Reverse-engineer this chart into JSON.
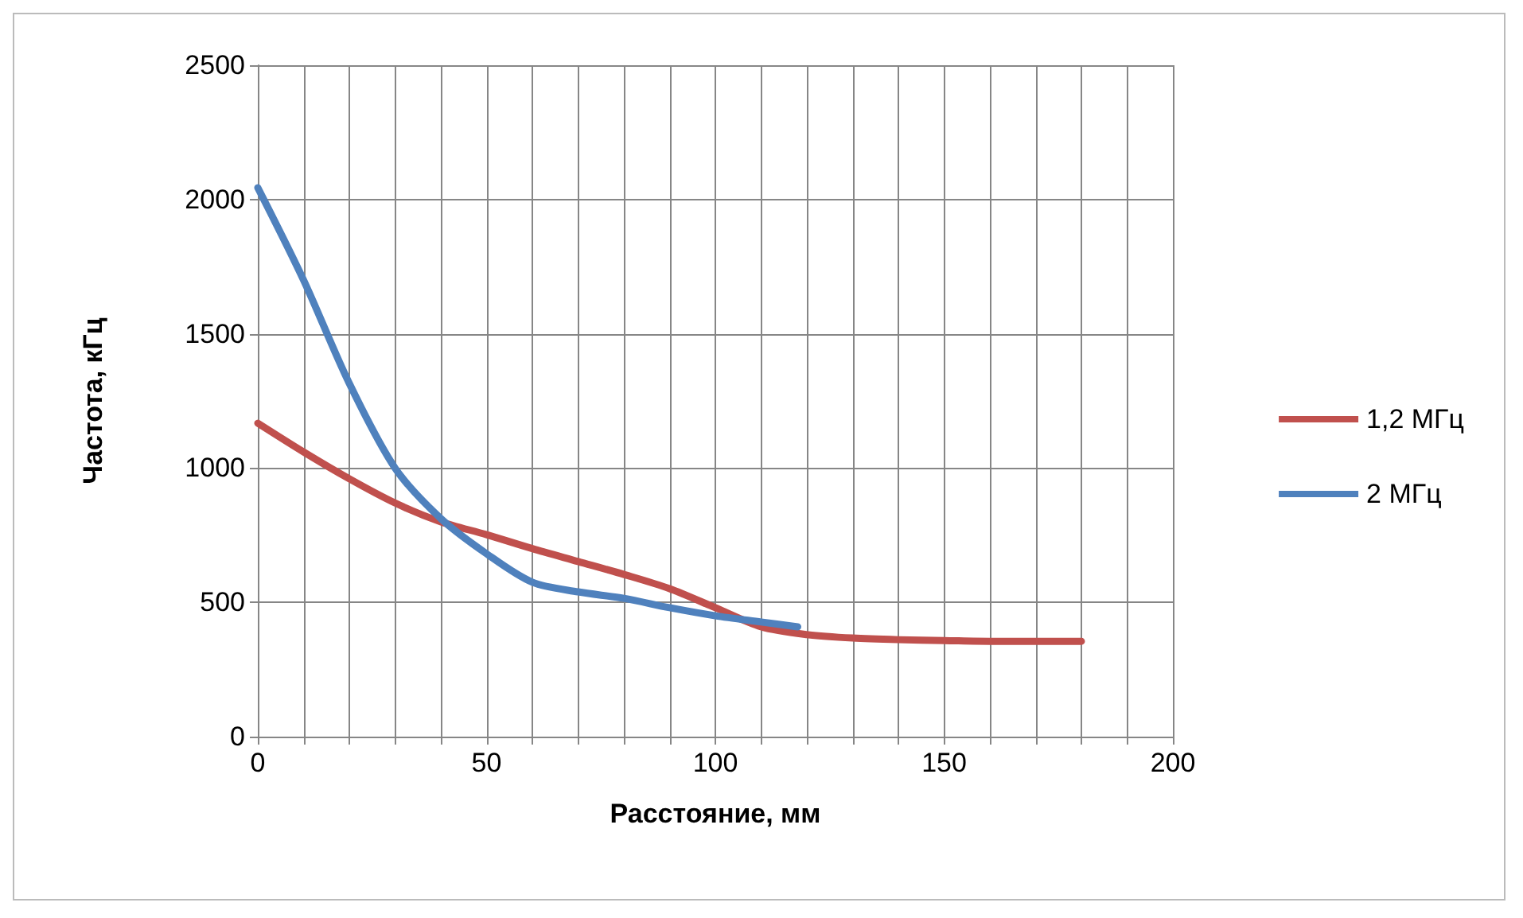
{
  "chart_data": {
    "type": "line",
    "xlabel": "Расстояние, мм",
    "ylabel": "Частота, кГц",
    "xlim": [
      0,
      200
    ],
    "xticks": [
      0,
      {
        "value": 10,
        "label": null
      },
      {
        "value": 20,
        "label": null
      },
      {
        "value": 30,
        "label": null
      },
      {
        "value": 40,
        "label": null
      },
      50,
      {
        "value": 60,
        "label": null
      },
      {
        "value": 70,
        "label": null
      },
      {
        "value": 80,
        "label": null
      },
      {
        "value": 90,
        "label": null
      },
      100,
      {
        "value": 110,
        "label": null
      },
      {
        "value": 120,
        "label": null
      },
      {
        "value": 130,
        "label": null
      },
      {
        "value": 140,
        "label": null
      },
      150,
      {
        "value": 160,
        "label": null
      },
      {
        "value": 170,
        "label": null
      },
      {
        "value": 180,
        "label": null
      },
      {
        "value": 190,
        "label": null
      },
      200
    ],
    "ylim": [
      0,
      2500
    ],
    "yticks": [
      0,
      500,
      1000,
      1500,
      2000,
      2500
    ],
    "grid": true,
    "legend": "right",
    "marker": "none",
    "line_style": "solid",
    "series": [
      {
        "name": "1,2 МГц",
        "color": "#c0504d",
        "x": [
          0,
          10,
          20,
          30,
          40,
          50,
          60,
          70,
          80,
          90,
          100,
          110,
          120,
          130,
          140,
          150,
          160,
          170,
          180
        ],
        "values": [
          1167,
          1060,
          960,
          870,
          800,
          752,
          700,
          652,
          604,
          551,
          480,
          409,
          380,
          367,
          361,
          358,
          355,
          355,
          355
        ]
      },
      {
        "name": "2 МГц",
        "color": "#4f81bd",
        "x": [
          0,
          10,
          20,
          30,
          40,
          50,
          60,
          70,
          80,
          90,
          100,
          110,
          118
        ],
        "values": [
          2044,
          1700,
          1315,
          1000,
          812,
          681,
          575,
          539,
          515,
          480,
          450,
          427,
          409
        ]
      }
    ]
  }
}
